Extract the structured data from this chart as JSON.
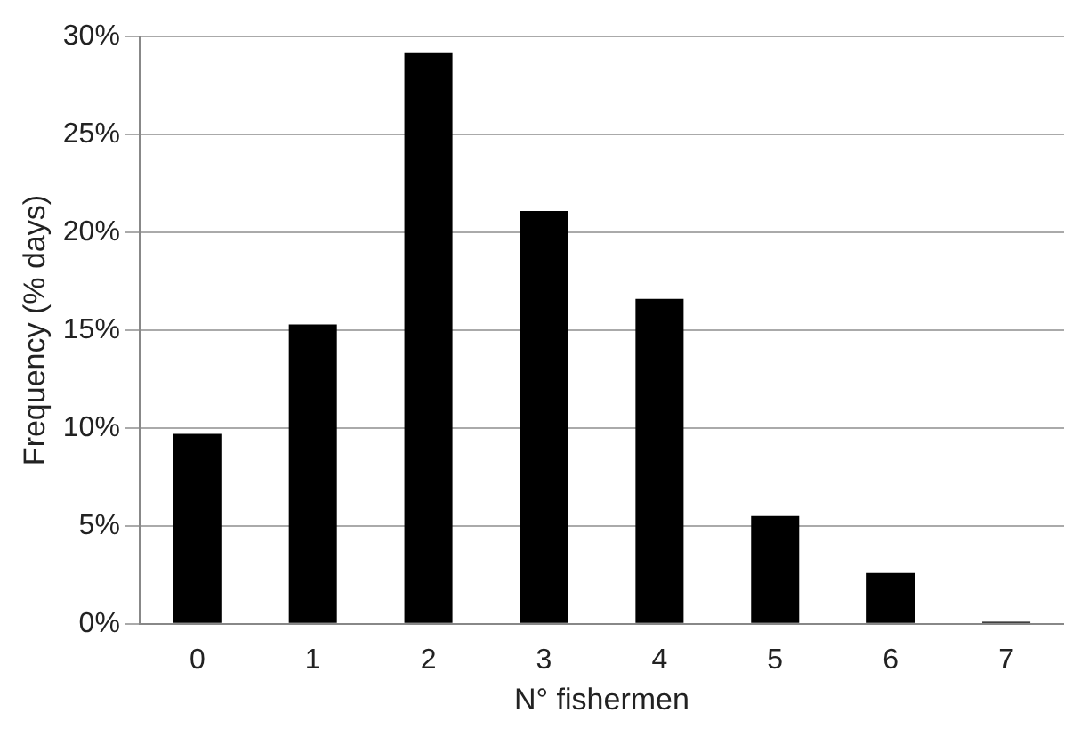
{
  "chart_data": {
    "type": "bar",
    "xlabel": "N° fishermen",
    "ylabel": "Frequency (% days)",
    "categories": [
      "0",
      "1",
      "2",
      "3",
      "4",
      "5",
      "6",
      "7"
    ],
    "values": [
      9.7,
      15.3,
      29.2,
      21.1,
      16.6,
      5.5,
      2.6,
      0.1
    ],
    "color": "#000000",
    "ylim": [
      0,
      30
    ],
    "yticks": [
      {
        "value": 0,
        "label": "0%"
      },
      {
        "value": 5,
        "label": "5%"
      },
      {
        "value": 10,
        "label": "10%"
      },
      {
        "value": 15,
        "label": "15%"
      },
      {
        "value": 20,
        "label": "20%"
      },
      {
        "value": 25,
        "label": "25%"
      },
      {
        "value": 30,
        "label": "30%"
      }
    ],
    "grid": "y",
    "legend": false
  }
}
